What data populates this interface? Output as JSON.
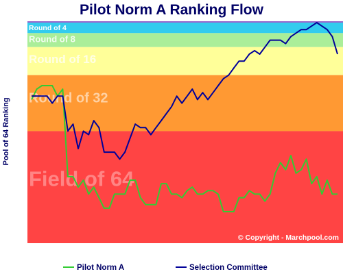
{
  "chart_data": {
    "type": "line",
    "title": "Pilot Norm A Ranking Flow",
    "ylabel": "Pool of 64 Ranking",
    "xlabel": "",
    "ylim": [
      64,
      1
    ],
    "grid": false,
    "legend_position": "bottom",
    "copyright": "© Copyright - Marchpool.com",
    "bands": [
      {
        "label": "Round of 4",
        "from": 1,
        "to": 4,
        "color": "#33ccee"
      },
      {
        "label": "Round of 8",
        "from": 4,
        "to": 8,
        "color": "#aaee99"
      },
      {
        "label": "Round of 16",
        "from": 8,
        "to": 16,
        "color": "#ffff99"
      },
      {
        "label": "Round of 32",
        "from": 16,
        "to": 32,
        "color": "#ff9933"
      },
      {
        "label": "Field of 64",
        "from": 32,
        "to": 64,
        "color": "#ff4444"
      }
    ],
    "series": [
      {
        "name": "Pilot Norm A",
        "color": "#33cc33",
        "values": [
          23,
          20,
          19,
          19,
          19,
          22,
          20,
          45,
          45,
          48,
          46,
          50,
          48,
          51,
          54,
          54,
          50,
          50,
          50,
          46,
          46,
          51,
          53,
          53,
          53,
          47,
          47,
          50,
          50,
          51,
          49,
          48,
          50,
          50,
          49,
          49,
          50,
          55,
          55,
          55,
          51,
          51,
          49,
          50,
          50,
          52,
          50,
          44,
          41,
          43,
          39,
          44,
          43,
          40,
          47,
          45,
          50,
          46,
          50,
          50
        ]
      },
      {
        "name": "Selection Committee",
        "color": "#000099",
        "values": [
          22,
          22,
          22,
          22,
          24,
          22,
          22,
          32,
          30,
          37,
          32,
          33,
          29,
          31,
          38,
          38,
          38,
          40,
          38,
          34,
          30,
          31,
          31,
          33,
          31,
          29,
          27,
          25,
          22,
          24,
          22,
          20,
          23,
          21,
          23,
          21,
          19,
          17,
          16,
          14,
          12,
          12,
          10,
          9,
          10,
          8,
          6,
          6,
          6,
          7,
          5,
          4,
          3,
          3,
          2,
          1,
          2,
          3,
          5,
          10
        ]
      }
    ]
  }
}
